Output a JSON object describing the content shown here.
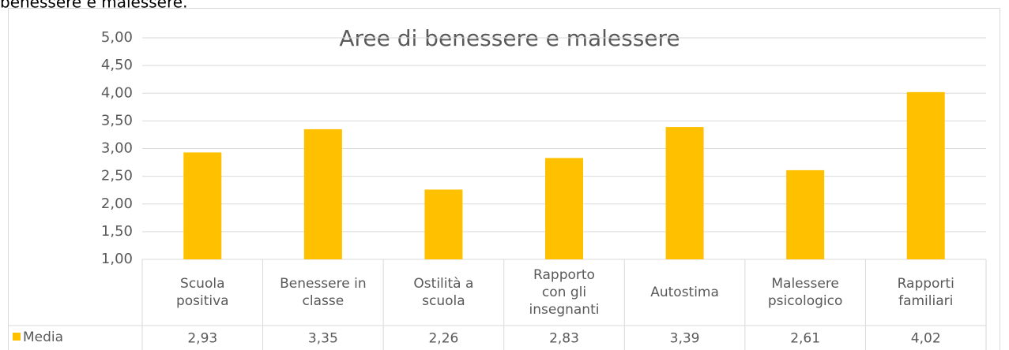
{
  "caption": "benessere e malessere.",
  "chart_data": {
    "type": "bar",
    "title": "Aree di benessere e malessere",
    "categories": [
      "Scuola\npositiva",
      "Benessere in\nclasse",
      "Ostilità a\nscuola",
      "Rapporto\ncon gli\ninsegnanti",
      "Autostima",
      "Malessere\npsicologico",
      "Rapporti\nfamiliari"
    ],
    "series": [
      {
        "name": "Media",
        "color": "#FFC000",
        "values": [
          2.93,
          3.35,
          2.26,
          2.83,
          3.39,
          2.61,
          4.02
        ],
        "value_labels": [
          "2,93",
          "3,35",
          "2,26",
          "2,83",
          "3,39",
          "2,61",
          "4,02"
        ]
      }
    ],
    "ylim": [
      1,
      5
    ],
    "yticks": [
      {
        "value": 1,
        "label": "1,00"
      },
      {
        "value": 1.5,
        "label": "1,50"
      },
      {
        "value": 2,
        "label": "2,00"
      },
      {
        "value": 2.5,
        "label": "2,50"
      },
      {
        "value": 3,
        "label": "3,00"
      },
      {
        "value": 3.5,
        "label": "3,50"
      },
      {
        "value": 4,
        "label": "4,00"
      },
      {
        "value": 4.5,
        "label": "4,50"
      },
      {
        "value": 5,
        "label": "5,00"
      }
    ],
    "grid": true
  }
}
